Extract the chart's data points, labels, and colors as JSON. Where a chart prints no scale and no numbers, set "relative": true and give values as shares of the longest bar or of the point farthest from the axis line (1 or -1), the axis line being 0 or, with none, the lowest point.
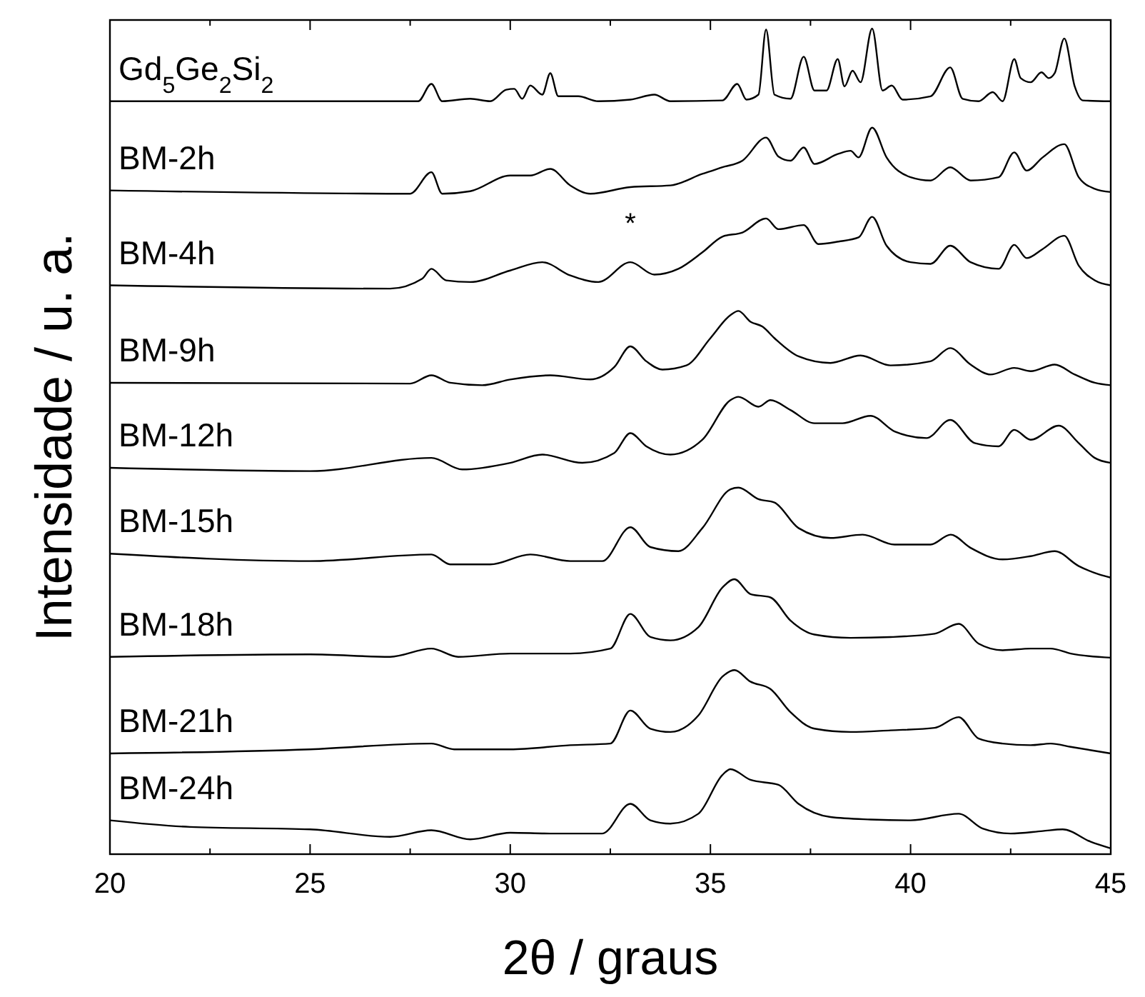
{
  "chart_data": {
    "type": "line",
    "relative": true,
    "xlabel": "2θ / graus",
    "ylabel": "Intensidade / u. a.",
    "xlim": [
      20,
      45
    ],
    "xticks": [
      20,
      {
        "value": 22.5,
        "label": null
      },
      25,
      {
        "value": 27.5,
        "label": null
      },
      30,
      {
        "value": 32.5,
        "label": null
      },
      35,
      {
        "value": 37.5,
        "label": null
      },
      40,
      {
        "value": 42.5,
        "label": null
      },
      45
    ],
    "tick_labels": "x",
    "grid": false,
    "marker": "none",
    "line_style": "solid",
    "annotations": [
      {
        "text": "*",
        "x": 33.0,
        "y": 0.717
      }
    ],
    "series": [
      {
        "name": "Gd$_{5}$Ge$_{2}$Si$_{2}$",
        "color": "#000000",
        "x": [
          20,
          25,
          27.7,
          28.03,
          28.3,
          29.0,
          29.5,
          29.9,
          30.1,
          30.3,
          30.5,
          30.8,
          31.0,
          31.2,
          31.7,
          32.2,
          33.0,
          33.6,
          34.0,
          35.3,
          35.67,
          35.9,
          36.2,
          36.39,
          36.6,
          37.0,
          37.33,
          37.6,
          37.9,
          38.18,
          38.35,
          38.55,
          38.75,
          39.04,
          39.3,
          39.53,
          39.8,
          40.5,
          40.99,
          41.3,
          41.7,
          42.05,
          42.3,
          42.59,
          42.75,
          43.0,
          43.27,
          43.45,
          43.6,
          43.84,
          44.1,
          44.3,
          45
        ],
        "values": [
          0.912,
          0.912,
          0.912,
          0.933,
          0.912,
          0.915,
          0.912,
          0.926,
          0.927,
          0.915,
          0.931,
          0.92,
          0.946,
          0.918,
          0.918,
          0.912,
          0.914,
          0.92,
          0.912,
          0.913,
          0.933,
          0.914,
          0.92,
          0.999,
          0.92,
          0.915,
          0.966,
          0.925,
          0.925,
          0.963,
          0.93,
          0.949,
          0.935,
          1.0,
          0.925,
          0.931,
          0.914,
          0.918,
          0.953,
          0.915,
          0.912,
          0.923,
          0.912,
          0.963,
          0.94,
          0.935,
          0.947,
          0.94,
          0.946,
          0.988,
          0.93,
          0.913,
          0.912
        ]
      },
      {
        "name": "BM-2h",
        "color": "#000000",
        "x": [
          20,
          27.5,
          28.03,
          28.3,
          29.0,
          30.0,
          30.5,
          31.0,
          31.5,
          32.0,
          33.0,
          34.0,
          34.8,
          35.3,
          35.8,
          36.39,
          36.7,
          37.0,
          37.33,
          37.6,
          38.18,
          38.5,
          38.7,
          39.04,
          39.4,
          40.0,
          40.5,
          40.99,
          41.5,
          42.2,
          42.59,
          42.9,
          43.3,
          43.84,
          44.2,
          44.6,
          45
        ],
        "values": [
          0.804,
          0.8,
          0.826,
          0.8,
          0.803,
          0.822,
          0.822,
          0.83,
          0.81,
          0.8,
          0.808,
          0.81,
          0.824,
          0.832,
          0.84,
          0.868,
          0.845,
          0.84,
          0.856,
          0.836,
          0.848,
          0.852,
          0.844,
          0.88,
          0.844,
          0.82,
          0.816,
          0.832,
          0.816,
          0.82,
          0.85,
          0.828,
          0.844,
          0.86,
          0.82,
          0.806,
          0.802
        ]
      },
      {
        "name": "BM-4h",
        "color": "#000000",
        "x": [
          20,
          27,
          27.8,
          28.03,
          28.4,
          29.0,
          30.0,
          30.8,
          31.5,
          32.2,
          33.0,
          33.6,
          34.2,
          34.8,
          35.3,
          35.8,
          36.39,
          36.7,
          37.33,
          37.7,
          38.2,
          38.7,
          39.04,
          39.4,
          40.0,
          40.5,
          40.99,
          41.5,
          42.2,
          42.59,
          42.9,
          43.3,
          43.84,
          44.2,
          44.6,
          45
        ],
        "values": [
          0.689,
          0.685,
          0.697,
          0.709,
          0.695,
          0.693,
          0.707,
          0.717,
          0.701,
          0.693,
          0.717,
          0.702,
          0.709,
          0.729,
          0.748,
          0.753,
          0.77,
          0.757,
          0.762,
          0.739,
          0.742,
          0.747,
          0.772,
          0.737,
          0.717,
          0.715,
          0.737,
          0.717,
          0.709,
          0.738,
          0.722,
          0.733,
          0.749,
          0.713,
          0.695,
          0.689
        ]
      },
      {
        "name": "BM-9h",
        "color": "#000000",
        "x": [
          20,
          27.5,
          28.03,
          28.5,
          29.3,
          30.0,
          31.0,
          32.0,
          32.6,
          33.0,
          33.4,
          33.8,
          34.4,
          35.0,
          35.5,
          35.7,
          36.0,
          36.3,
          36.6,
          37.2,
          38.0,
          38.75,
          39.5,
          40.5,
          40.99,
          41.5,
          42.0,
          42.59,
          43.0,
          43.6,
          44.1,
          44.6,
          45
        ],
        "values": [
          0.571,
          0.57,
          0.58,
          0.571,
          0.568,
          0.575,
          0.58,
          0.575,
          0.59,
          0.615,
          0.597,
          0.587,
          0.592,
          0.625,
          0.653,
          0.658,
          0.645,
          0.639,
          0.625,
          0.603,
          0.595,
          0.604,
          0.592,
          0.597,
          0.613,
          0.593,
          0.581,
          0.589,
          0.585,
          0.593,
          0.581,
          0.571,
          0.568
        ]
      },
      {
        "name": "BM-12h",
        "color": "#000000",
        "x": [
          20,
          25,
          28.03,
          28.8,
          30.0,
          30.8,
          31.8,
          32.6,
          33.0,
          33.4,
          34.0,
          34.8,
          35.5,
          35.7,
          36.2,
          36.5,
          37.0,
          37.6,
          38.3,
          39.0,
          39.6,
          40.4,
          40.99,
          41.6,
          42.2,
          42.59,
          43.0,
          43.7,
          44.2,
          44.6,
          45
        ],
        "values": [
          0.468,
          0.464,
          0.48,
          0.466,
          0.474,
          0.484,
          0.474,
          0.486,
          0.51,
          0.494,
          0.484,
          0.502,
          0.55,
          0.554,
          0.542,
          0.55,
          0.538,
          0.522,
          0.522,
          0.531,
          0.512,
          0.504,
          0.526,
          0.498,
          0.494,
          0.514,
          0.502,
          0.519,
          0.498,
          0.48,
          0.474
        ]
      },
      {
        "name": "BM-15h",
        "color": "#000000",
        "x": [
          20,
          25,
          28.03,
          28.5,
          29.5,
          30.5,
          31.5,
          32.3,
          33.0,
          33.5,
          34.2,
          34.8,
          35.5,
          35.7,
          36.2,
          36.6,
          37.2,
          38.0,
          38.8,
          39.6,
          40.5,
          41.0,
          41.5,
          42.3,
          43.0,
          43.6,
          44.2,
          44.7,
          45
        ],
        "values": [
          0.364,
          0.355,
          0.363,
          0.351,
          0.351,
          0.363,
          0.355,
          0.355,
          0.396,
          0.372,
          0.367,
          0.395,
          0.442,
          0.444,
          0.43,
          0.426,
          0.395,
          0.383,
          0.387,
          0.375,
          0.375,
          0.387,
          0.371,
          0.357,
          0.361,
          0.367,
          0.349,
          0.339,
          0.335
        ]
      },
      {
        "name": "BM-18h",
        "color": "#000000",
        "x": [
          20,
          25,
          27,
          28.03,
          28.7,
          30,
          31.5,
          32.5,
          33.0,
          33.5,
          34.0,
          34.7,
          35.3,
          35.6,
          36.0,
          36.5,
          37.0,
          37.6,
          38.5,
          39.5,
          40.6,
          41.2,
          41.7,
          42.3,
          43.0,
          43.5,
          44.0,
          45
        ],
        "values": [
          0.239,
          0.242,
          0.239,
          0.249,
          0.239,
          0.243,
          0.243,
          0.249,
          0.291,
          0.263,
          0.259,
          0.275,
          0.323,
          0.333,
          0.315,
          0.311,
          0.283,
          0.266,
          0.262,
          0.263,
          0.267,
          0.279,
          0.255,
          0.247,
          0.249,
          0.249,
          0.243,
          0.238
        ]
      },
      {
        "name": "BM-21h",
        "color": "#000000",
        "x": [
          20,
          25,
          28.03,
          28.6,
          30,
          31.5,
          32.5,
          33.0,
          33.5,
          34.0,
          34.7,
          35.3,
          35.6,
          36.0,
          36.5,
          37.0,
          37.6,
          38.5,
          39.5,
          40.6,
          41.2,
          41.7,
          42.3,
          43.0,
          43.5,
          44.0,
          45
        ],
        "values": [
          0.122,
          0.127,
          0.134,
          0.127,
          0.127,
          0.132,
          0.134,
          0.174,
          0.152,
          0.148,
          0.168,
          0.215,
          0.223,
          0.209,
          0.2,
          0.172,
          0.152,
          0.148,
          0.15,
          0.153,
          0.166,
          0.14,
          0.134,
          0.132,
          0.134,
          0.13,
          0.122
        ]
      },
      {
        "name": "BM-24h",
        "color": "#000000",
        "x": [
          20,
          22,
          25,
          27,
          28.03,
          29.0,
          30.0,
          31.0,
          32.3,
          33.0,
          33.5,
          34.0,
          34.7,
          35.3,
          35.5,
          36.0,
          36.7,
          37.2,
          38.0,
          39.0,
          40.0,
          41.2,
          41.8,
          42.5,
          43.3,
          43.8,
          44.5,
          45
        ],
        "values": [
          0.041,
          0.033,
          0.03,
          0.021,
          0.029,
          0.018,
          0.026,
          0.025,
          0.025,
          0.061,
          0.041,
          0.037,
          0.049,
          0.096,
          0.103,
          0.09,
          0.084,
          0.061,
          0.045,
          0.042,
          0.041,
          0.049,
          0.031,
          0.025,
          0.028,
          0.03,
          0.015,
          0.007
        ]
      }
    ]
  }
}
